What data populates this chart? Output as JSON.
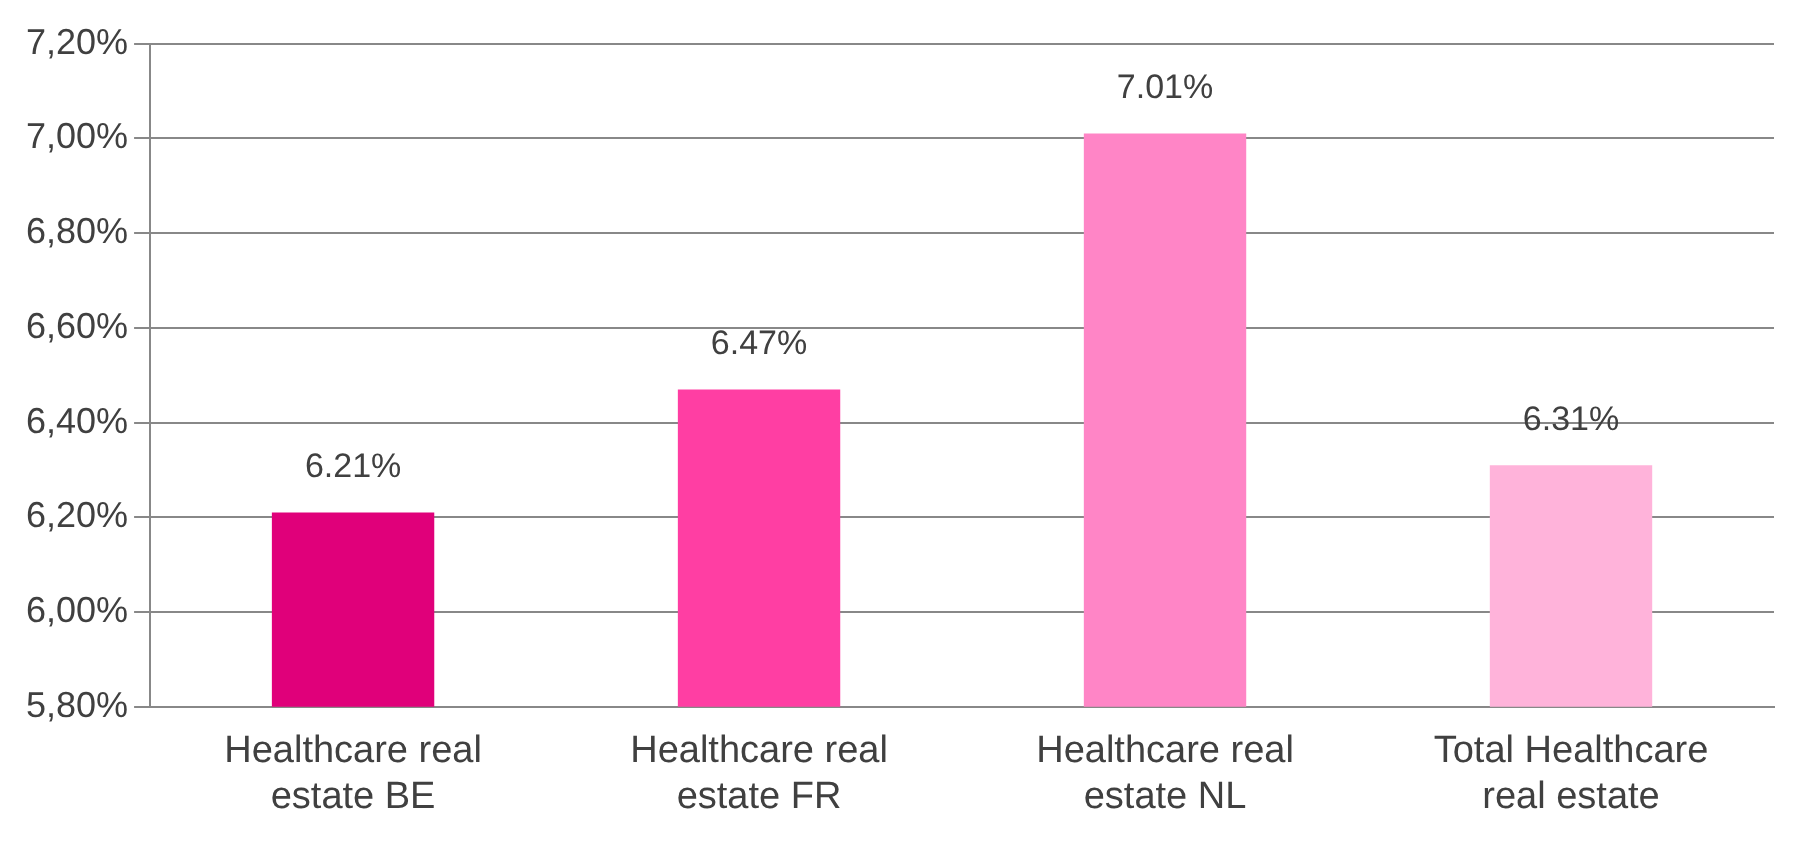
{
  "chart_data": {
    "type": "bar",
    "categories": [
      "Healthcare real estate BE",
      "Healthcare real estate FR",
      "Healthcare real estate NL",
      "Total Healthcare real estate"
    ],
    "values": [
      6.21,
      6.47,
      7.01,
      6.31
    ],
    "colors": [
      "#e0007a",
      "#ff3ea3",
      "#ff85c6",
      "#ffb3da"
    ],
    "value_labels": [
      "6.21%",
      "6.47%",
      "7.01%",
      "6.31%"
    ],
    "ylim": [
      5.8,
      7.2
    ],
    "yticks": [
      {
        "value": 5.8,
        "label": "5,80%"
      },
      {
        "value": 6.0,
        "label": "6,00%"
      },
      {
        "value": 6.2,
        "label": "6,20%"
      },
      {
        "value": 6.4,
        "label": "6,40%"
      },
      {
        "value": 6.6,
        "label": "6,60%"
      },
      {
        "value": 6.8,
        "label": "6,80%"
      },
      {
        "value": 7.0,
        "label": "7,00%"
      },
      {
        "value": 7.2,
        "label": "7,20%"
      }
    ],
    "grid": "y"
  }
}
